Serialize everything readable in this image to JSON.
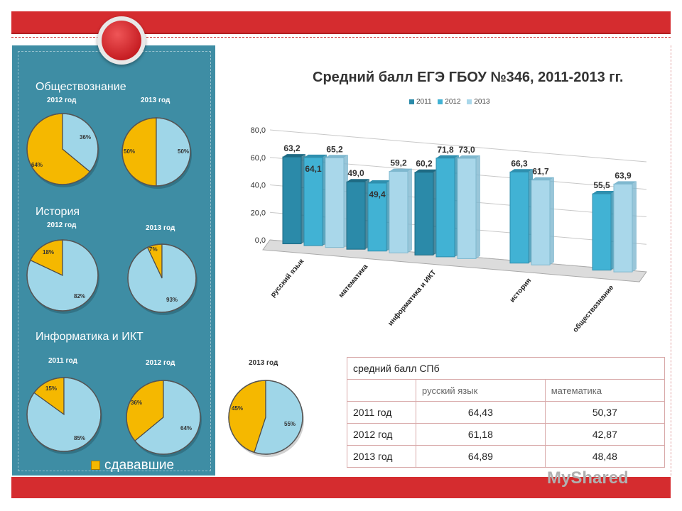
{
  "chart_title": "Средний балл ЕГЭ ГБОУ №346, 2011-2013 гг.",
  "colors": {
    "y2011": "#2b8aa9",
    "y2012": "#41b2d4",
    "y2013": "#a9d7ea",
    "pie_yellow": "#f5b800",
    "pie_blue": "#9fd6e8"
  },
  "chart_data": [
    {
      "type": "bar",
      "title": "Средний балл ЕГЭ ГБОУ №346, 2011-2013 гг.",
      "categories": [
        "русский язык",
        "математика",
        "информатика и ИКТ",
        "история",
        "обществознание"
      ],
      "series": [
        {
          "name": "2011",
          "values": [
            63.2,
            49.0,
            60.2,
            null,
            null
          ]
        },
        {
          "name": "2012",
          "values": [
            64.1,
            49.4,
            71.8,
            66.3,
            55.5
          ]
        },
        {
          "name": "2013",
          "values": [
            65.2,
            59.2,
            73.0,
            61.7,
            63.9
          ]
        }
      ],
      "value_labels": [
        [
          "63,2",
          "64,1",
          "65,2"
        ],
        [
          "49,0",
          "49,4",
          "59,2"
        ],
        [
          "60,2",
          "71,8",
          "73,0"
        ],
        [
          null,
          "66,3",
          "61,7"
        ],
        [
          null,
          "55,5",
          "63,9"
        ]
      ],
      "y_ticks": [
        "0,0",
        "20,0",
        "40,0",
        "60,0",
        "80,0"
      ],
      "ylim": [
        0,
        80
      ],
      "legend": [
        "2011",
        "2012",
        "2013"
      ]
    },
    {
      "type": "pie",
      "section": "Обществознание",
      "pies": [
        {
          "title": "2012 год",
          "values": [
            64,
            36
          ],
          "labels": [
            "64%",
            "36%"
          ]
        },
        {
          "title": "2013 год",
          "values": [
            50,
            50
          ],
          "labels": [
            "50%",
            "50%"
          ]
        }
      ]
    },
    {
      "type": "pie",
      "section": "История",
      "pies": [
        {
          "title": "2012 год",
          "values": [
            18,
            82
          ],
          "labels": [
            "18%",
            "82%"
          ]
        },
        {
          "title": "2013 год",
          "values": [
            7,
            93
          ],
          "labels": [
            "7%",
            "93%"
          ]
        }
      ]
    },
    {
      "type": "pie",
      "section": "Информатика и ИКТ",
      "pies": [
        {
          "title": "2011 год",
          "values": [
            15,
            85
          ],
          "labels": [
            "15%",
            "85%"
          ]
        },
        {
          "title": "2012 год",
          "values": [
            36,
            64
          ],
          "labels": [
            "36%",
            "64%"
          ]
        },
        {
          "title": "2013 год",
          "values": [
            45,
            55
          ],
          "labels": [
            "45%",
            "55%"
          ]
        }
      ]
    },
    {
      "type": "table",
      "title": "средний балл СПб",
      "columns": [
        "",
        "русский язык",
        "математика"
      ],
      "rows": [
        [
          "2011 год",
          "64,43",
          "50,37"
        ],
        [
          "2012 год",
          "61,18",
          "42,87"
        ],
        [
          "2013 год",
          "64,89",
          "48,48"
        ]
      ]
    }
  ],
  "sections": {
    "social": "Обществознание",
    "history": "История",
    "informatics": "Информатика и ИКТ"
  },
  "left_legend": "сдававшие",
  "spb_table": {
    "title": "средний балл СПб",
    "col_russian": "русский язык",
    "col_math": "математика",
    "rows": [
      {
        "year": "2011 год",
        "russian": "64,43",
        "math": "50,37"
      },
      {
        "year": "2012 год",
        "russian": "61,18",
        "math": "42,87"
      },
      {
        "year": "2013 год",
        "russian": "64,89",
        "math": "48,48"
      }
    ]
  },
  "watermark": "MyShared"
}
